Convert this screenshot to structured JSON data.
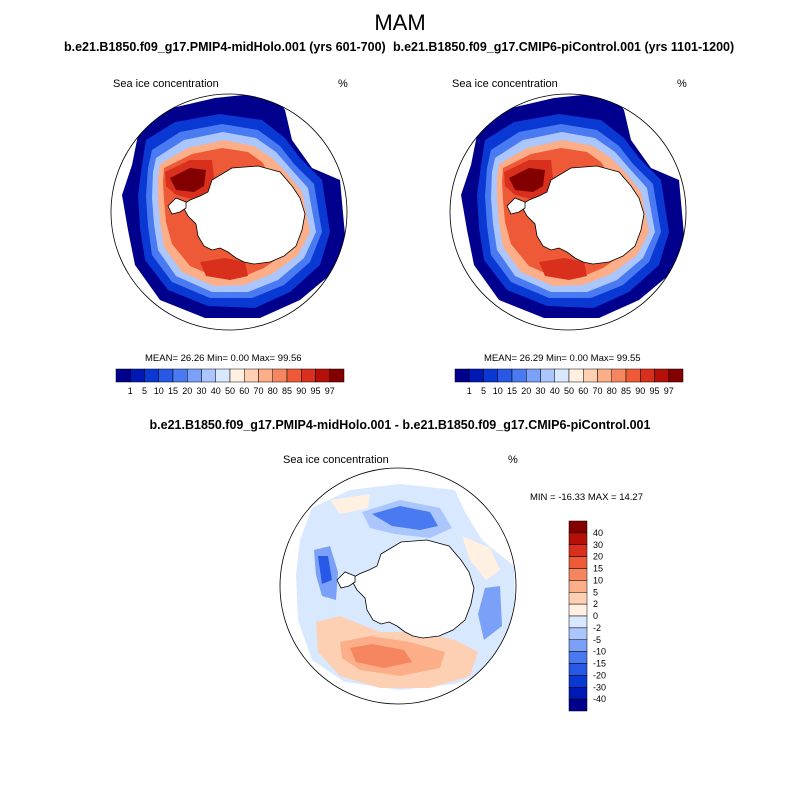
{
  "title": "MAM",
  "panels": [
    {
      "title": "b.e21.B1850.f09_g17.PMIP4-midHolo.001 (yrs 601-700)",
      "variable": "Sea ice concentration",
      "units": "%",
      "stats": "MEAN=  26.26  Min=   0.00  Max=  99.56"
    },
    {
      "title": "b.e21.B1850.f09_g17.CMIP6-piControl.001 (yrs 1101-1200)",
      "variable": "Sea ice concentration",
      "units": "%",
      "stats": "MEAN=  26.29  Min=   0.00  Max=  99.55"
    }
  ],
  "difference": {
    "title": "b.e21.B1850.f09_g17.PMIP4-midHolo.001 - b.e21.B1850.f09_g17.CMIP6-piControl.001",
    "variable": "Sea ice concentration",
    "units": "%",
    "stats": "MIN = -16.33 MAX =  14.27"
  },
  "colorbar_main": {
    "labels": [
      "1",
      "5",
      "10",
      "15",
      "20",
      "30",
      "40",
      "50",
      "60",
      "70",
      "80",
      "85",
      "90",
      "95",
      "97"
    ],
    "colors": [
      "#00008c",
      "#0018b4",
      "#0a38d2",
      "#2858e6",
      "#4a7af2",
      "#7aa0f8",
      "#aac6fc",
      "#d8e8ff",
      "#fff0e2",
      "#fdd0b4",
      "#fbae88",
      "#f68660",
      "#ee5a38",
      "#d8301c",
      "#b41008",
      "#820000"
    ]
  },
  "colorbar_diff": {
    "labels": [
      "40",
      "30",
      "20",
      "15",
      "10",
      "5",
      "2",
      "0",
      "-2",
      "-5",
      "-10",
      "-15",
      "-20",
      "-30",
      "-40"
    ],
    "colors": [
      "#820000",
      "#b41008",
      "#d8301c",
      "#ee5a38",
      "#f68660",
      "#fbae88",
      "#fdd0b4",
      "#fff0e2",
      "#d8e8ff",
      "#aac6fc",
      "#7aa0f8",
      "#4a7af2",
      "#2858e6",
      "#0a38d2",
      "#0018b4",
      "#00008c"
    ]
  }
}
